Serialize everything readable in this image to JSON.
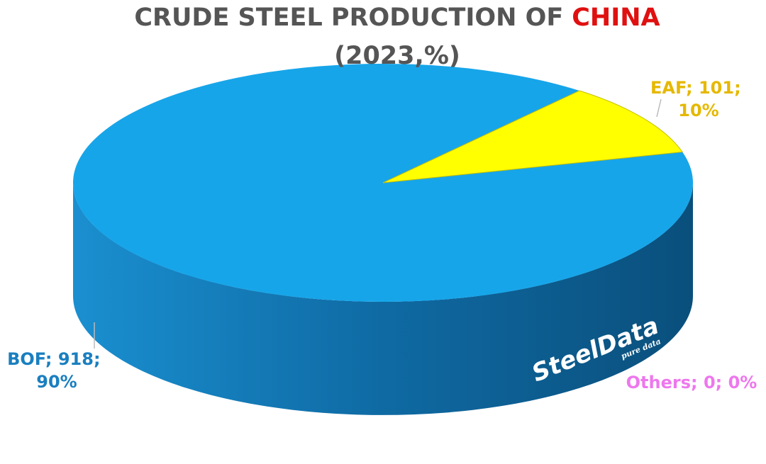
{
  "chart_data": {
    "type": "pie",
    "title": "CRUDE STEEL PRODUCTION OF",
    "title_highlight": "CHINA",
    "subtitle": "(2023,%)",
    "values": [
      918,
      101,
      0
    ],
    "value_labels": [
      "BOF; 918; 90%",
      "EAF; 101; 10%",
      "Others; 0; 0%"
    ],
    "colors": [
      "#17a5e9",
      "#ffff00",
      "#e27be2"
    ],
    "label_colors": [
      "#1a7fc0",
      "#e6b800",
      "#ee77ee"
    ],
    "watermark": "SteelData",
    "watermark_sub": "pure data"
  }
}
